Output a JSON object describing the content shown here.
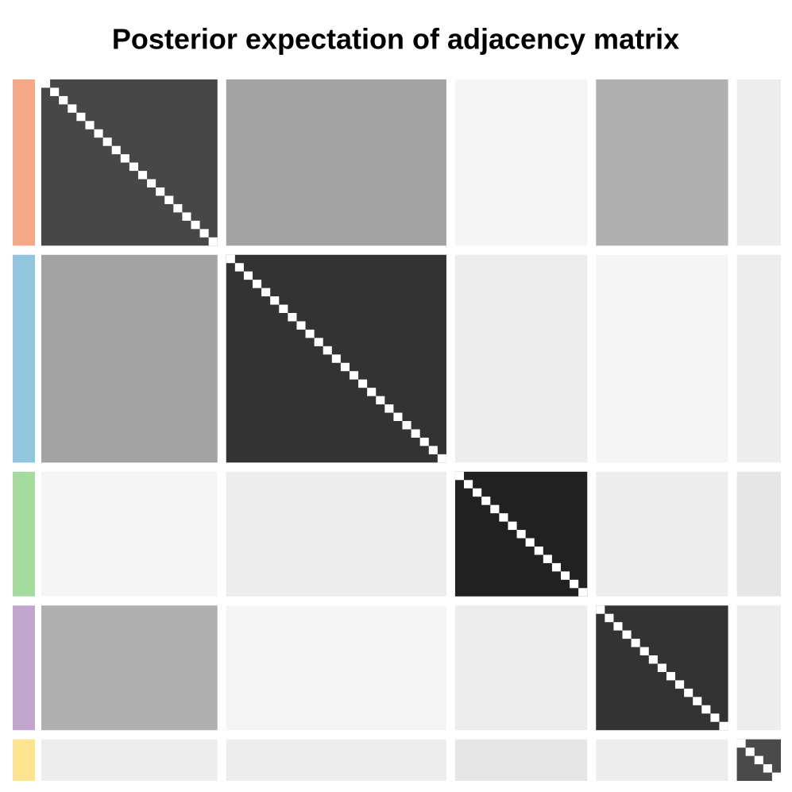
{
  "chart_data": {
    "type": "heatmap",
    "title": "Posterior expectation of adjacency matrix",
    "groups": [
      {
        "color": "#f4a886",
        "size": 20
      },
      {
        "color": "#92c5de",
        "size": 25
      },
      {
        "color": "#a6dba0",
        "size": 15
      },
      {
        "color": "#c2a5cf",
        "size": 15
      },
      {
        "color": "#fee391",
        "size": 5
      }
    ],
    "block_values": [
      [
        0.72,
        0.36,
        0.04,
        0.31,
        0.07
      ],
      [
        0.36,
        0.8,
        0.07,
        0.04,
        0.07
      ],
      [
        0.04,
        0.07,
        0.87,
        0.07,
        0.1
      ],
      [
        0.31,
        0.04,
        0.07,
        0.8,
        0.07
      ],
      [
        0.07,
        0.07,
        0.1,
        0.07,
        0.71
      ]
    ],
    "self_value": 0
  }
}
